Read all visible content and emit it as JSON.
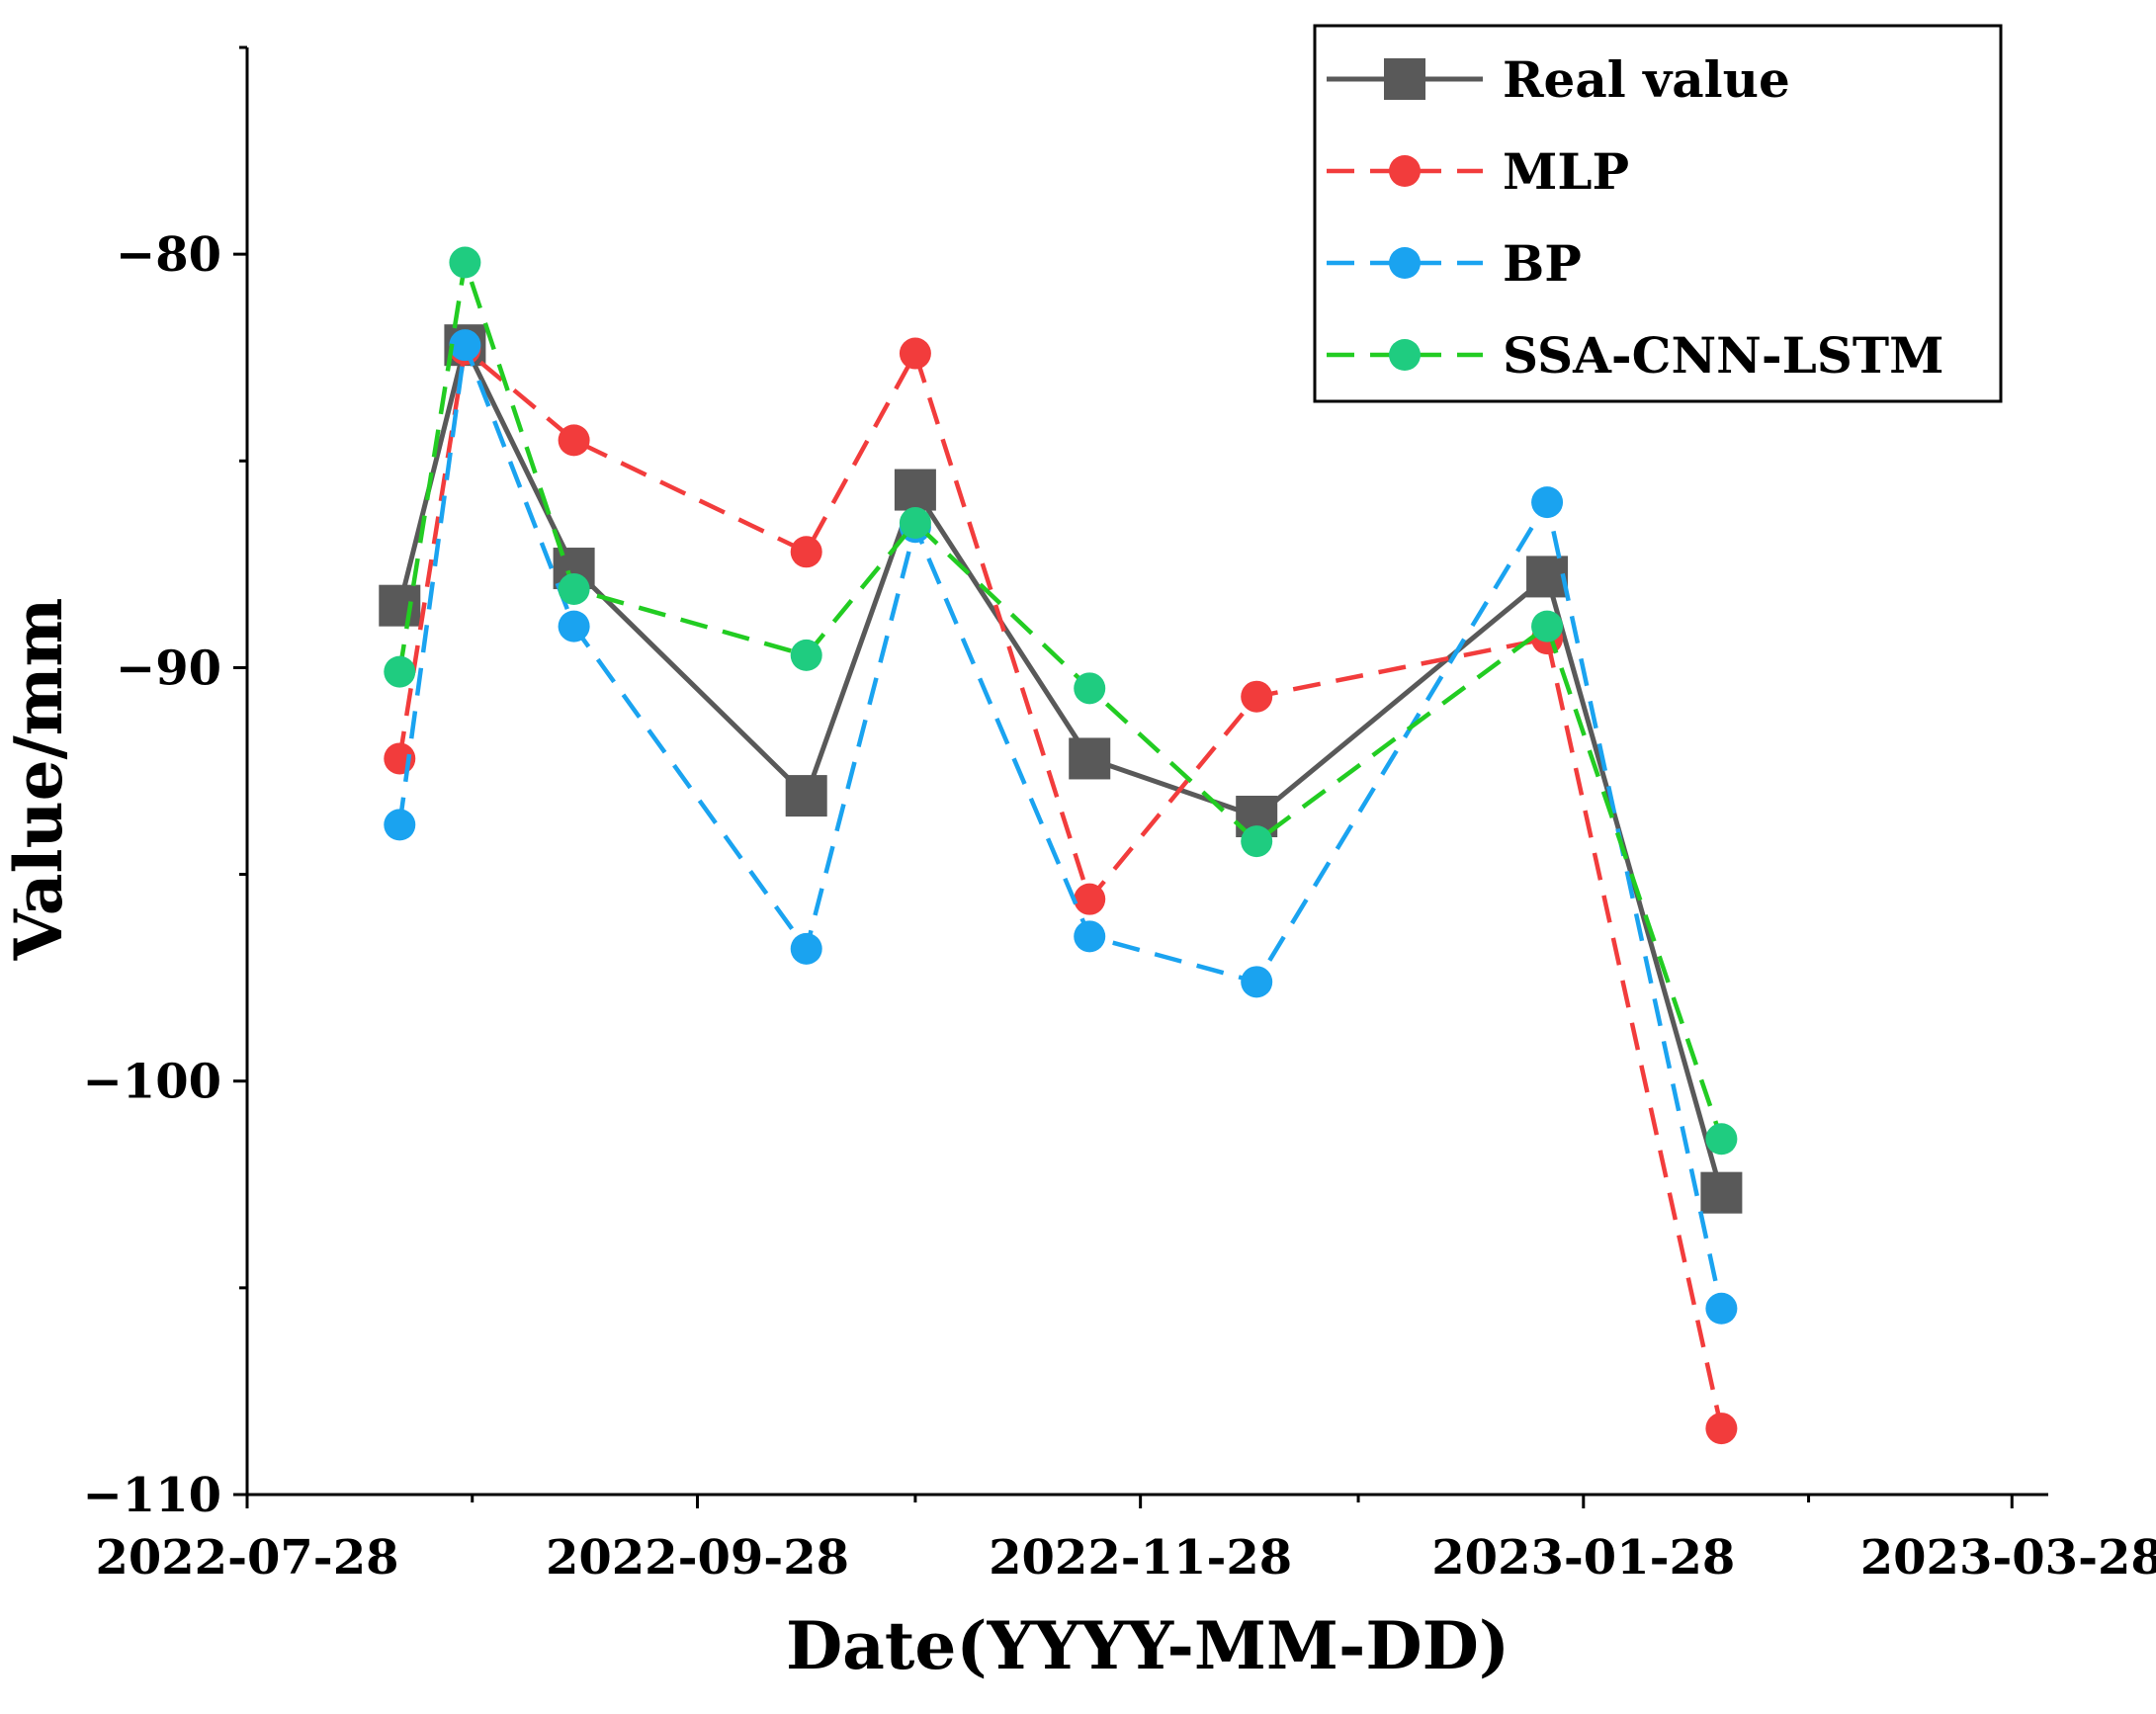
{
  "chart_data": {
    "type": "line",
    "title": "",
    "xlabel": "Date(YYYY-MM-DD)",
    "ylabel": "Value/mm",
    "x_type": "date",
    "xlim": [
      "2022-07-28",
      "2023-04-02"
    ],
    "ylim": [
      -110,
      -75
    ],
    "y_ticks": [
      -80,
      -90,
      -100,
      -110
    ],
    "y_tick_labels": [
      "−80",
      "−90",
      "−100",
      "−110"
    ],
    "y_minor_ticks": [
      -75,
      -85,
      -95,
      -105
    ],
    "x_ticks": [
      "2022-07-28",
      "2022-09-28",
      "2022-11-28",
      "2023-01-28",
      "2023-03-28"
    ],
    "x_minor_ticks": [
      "2022-08-28",
      "2022-10-28",
      "2022-12-28",
      "2023-02-28"
    ],
    "grid": false,
    "legend_position": "top-right",
    "x": [
      "2022-08-18",
      "2022-08-27",
      "2022-09-11",
      "2022-10-13",
      "2022-10-28",
      "2022-11-21",
      "2022-12-14",
      "2023-01-23",
      "2023-02-16"
    ],
    "series": [
      {
        "name": "Real value",
        "color": "#595959",
        "line": "solid",
        "marker": "square",
        "values": [
          -88.5,
          -82.2,
          -87.6,
          -93.1,
          -85.7,
          -92.2,
          -93.6,
          -87.8,
          -102.7
        ]
      },
      {
        "name": "MLP",
        "color": "#f23c3c",
        "line": "dashed",
        "marker": "circle",
        "values": [
          -92.2,
          -82.3,
          -84.5,
          -87.2,
          -82.4,
          -95.6,
          -90.7,
          -89.3,
          -108.4
        ]
      },
      {
        "name": "BP",
        "color": "#1aa3f0",
        "line": "dashed",
        "marker": "circle",
        "values": [
          -93.8,
          -82.2,
          -89.0,
          -96.8,
          -86.6,
          -96.5,
          -97.6,
          -86.0,
          -105.5
        ]
      },
      {
        "name": "SSA-CNN-LSTM",
        "color": "#1fcc80",
        "line_color": "#22cc22",
        "line": "dashed",
        "marker": "circle",
        "values": [
          -90.1,
          -80.2,
          -88.1,
          -89.7,
          -86.5,
          -90.5,
          -94.2,
          -89.0,
          -101.4
        ]
      }
    ]
  }
}
